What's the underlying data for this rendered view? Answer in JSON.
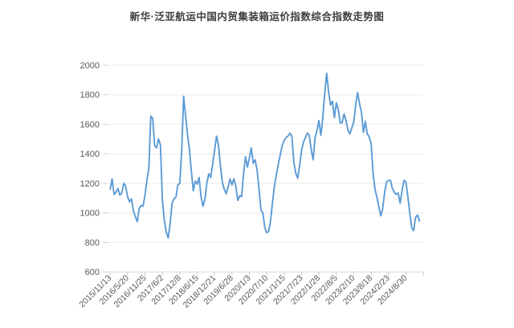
{
  "title": "新华·泛亚航运中国内贸集装箱运价指数综合指数走势图",
  "chart_data": {
    "type": "line",
    "title": "新华·泛亚航运中国内贸集装箱运价指数综合指数走势图",
    "series_name": "综合指数",
    "xlabel": "",
    "ylabel": "",
    "x_tick_labels": [
      "2015/11/13",
      "2016/5/20",
      "2016/11/25",
      "2017/6/2",
      "2017/12/8",
      "2018/6/15",
      "2018/12/21",
      "2019/6/28",
      "2020/1/3",
      "2020/7/10",
      "2021/1/15",
      "2021/7/23",
      "2022/1/28",
      "2022/8/5",
      "2023/2/10",
      "2023/8/18",
      "2024/2/23",
      "2024/8/30"
    ],
    "points_per_label_interval": 9,
    "y_ticks": [
      600,
      800,
      1000,
      1200,
      1400,
      1600,
      1800,
      2000
    ],
    "ylim": [
      600,
      2000
    ],
    "grid": "horizontal",
    "legend": "none",
    "line_color": "#5B9BD5",
    "grid_color": "#EAEAEA",
    "axis_color": "#D6D6D6",
    "tick_color": "#C9C9C9",
    "text_color": "#595959",
    "values": [
      1160,
      1230,
      1125,
      1140,
      1165,
      1120,
      1135,
      1200,
      1180,
      1110,
      1075,
      1095,
      1015,
      975,
      940,
      1030,
      1050,
      1045,
      1120,
      1220,
      1300,
      1655,
      1640,
      1455,
      1440,
      1500,
      1460,
      1090,
      950,
      870,
      830,
      925,
      1065,
      1095,
      1105,
      1190,
      1200,
      1420,
      1790,
      1660,
      1530,
      1430,
      1280,
      1150,
      1215,
      1195,
      1240,
      1110,
      1045,
      1090,
      1200,
      1265,
      1240,
      1330,
      1420,
      1520,
      1460,
      1325,
      1210,
      1160,
      1130,
      1175,
      1230,
      1190,
      1230,
      1180,
      1085,
      1115,
      1110,
      1265,
      1380,
      1310,
      1370,
      1440,
      1335,
      1360,
      1290,
      1160,
      1020,
      1000,
      900,
      865,
      875,
      950,
      1075,
      1185,
      1260,
      1330,
      1395,
      1455,
      1490,
      1510,
      1520,
      1540,
      1520,
      1345,
      1270,
      1235,
      1320,
      1420,
      1480,
      1510,
      1540,
      1525,
      1430,
      1360,
      1510,
      1560,
      1625,
      1525,
      1645,
      1810,
      1945,
      1820,
      1730,
      1755,
      1645,
      1745,
      1700,
      1610,
      1610,
      1670,
      1625,
      1560,
      1535,
      1575,
      1615,
      1730,
      1815,
      1740,
      1680,
      1545,
      1620,
      1535,
      1515,
      1470,
      1270,
      1160,
      1105,
      1040,
      980,
      1030,
      1140,
      1210,
      1220,
      1220,
      1165,
      1140,
      1125,
      1135,
      1065,
      1150,
      1220,
      1210,
      1110,
      1000,
      900,
      880,
      970,
      985,
      945
    ]
  }
}
